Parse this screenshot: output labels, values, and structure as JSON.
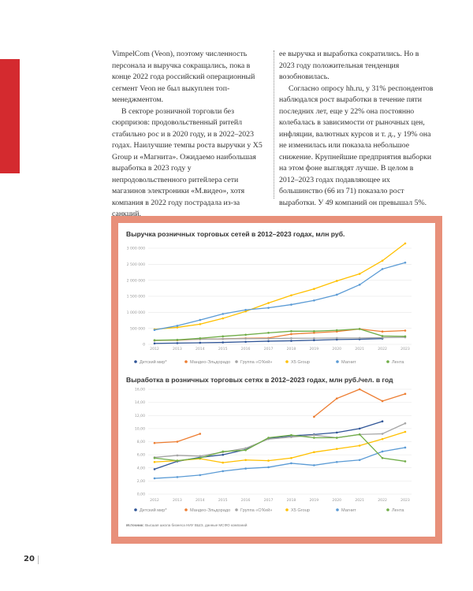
{
  "text": {
    "left": [
      "VimpelCom (Veon), поэтому численность персонала и выручка сокращались, пока в конце 2022 года российский операционный сегмент Veon не был выкуплен топ-менеджментом.",
      "В секторе розничной торговли без сюрпризов: продовольственный ритейл стабильно рос и в 2020 году, и в 2022–2023 годах. Наилучшие темпы роста выручки у X5 Group и «Магнита». Ожидаемо наибольшая выработка в 2023 году у непродовольственного ритейлера сети магазинов электроники «М.видео», хотя компания в 2022 году пострадала из-за санкций,"
    ],
    "right": [
      "ее выручка и выработка сократились. Но в 2023 году положительная тенденция возобновилась.",
      "Согласно опросу hh.ru, у 31% респондентов наблюдался рост выработки в течение пяти последних лет, еще у 22% она постоянно колебалась в зависимости от рыночных цен, инфляции, валютных курсов и т. д., у 19% она не изменилась или показала небольшое снижение. Крупнейшие предприятия выборки на этом фоне выглядят лучше. В целом в 2012–2023 годах подавляющее их большинство (66 из 71) показало рост выработки. У 49 компаний он превышал 5%."
    ]
  },
  "page_number": "20",
  "source_label": "Источник:",
  "source_text": "Высшая школа бизнеса НИУ ВШЭ, данные МСФО компаний",
  "chart_data": [
    {
      "type": "line",
      "title": "Выручка розничных торговых сетей в 2012–2023 годах, млн руб.",
      "categories": [
        "2012",
        "2013",
        "2014",
        "2015",
        "2016",
        "2017",
        "2018",
        "2019",
        "2020",
        "2021",
        "2022",
        "2023"
      ],
      "ylim": [
        0,
        3000000
      ],
      "yticks": [
        0,
        500000,
        1000000,
        1500000,
        2000000,
        2500000,
        3000000
      ],
      "ytick_labels": [
        "0",
        "500 000",
        "1 000 000",
        "1 500 000",
        "2 000 000",
        "2 500 000",
        "3 000 000"
      ],
      "grid": true,
      "legend": "bottom",
      "series": [
        {
          "name": "Детский мир*",
          "color": "#2f5597",
          "values": [
            30000,
            40000,
            50000,
            60000,
            80000,
            100000,
            110000,
            130000,
            150000,
            160000,
            180000,
            null
          ]
        },
        {
          "name": "Мандео-Эльдорадо",
          "color": "#ed7d31",
          "values": [
            120000,
            130000,
            160000,
            170000,
            190000,
            200000,
            320000,
            360000,
            400000,
            480000,
            400000,
            430000
          ]
        },
        {
          "name": "Группа «О'Кей»",
          "color": "#a5a5a5",
          "values": [
            120000,
            140000,
            160000,
            170000,
            180000,
            180000,
            190000,
            190000,
            200000,
            200000,
            210000,
            220000
          ]
        },
        {
          "name": "X5 Group",
          "color": "#ffc000",
          "values": [
            470000,
            530000,
            630000,
            810000,
            1030000,
            1290000,
            1530000,
            1730000,
            1980000,
            2200000,
            2610000,
            3150000
          ]
        },
        {
          "name": "Магнит",
          "color": "#5b9bd5",
          "values": [
            450000,
            580000,
            760000,
            950000,
            1075000,
            1140000,
            1240000,
            1370000,
            1550000,
            1860000,
            2350000,
            2550000
          ]
        },
        {
          "name": "Лента",
          "color": "#70ad47",
          "values": [
            130000,
            140000,
            190000,
            250000,
            300000,
            360000,
            410000,
            410000,
            440000,
            480000,
            260000,
            250000
          ]
        }
      ]
    },
    {
      "type": "line",
      "title": "Выработка в розничных торговых сетях в 2012–2023 годах, млн руб./чел. в год",
      "categories": [
        "2012",
        "2013",
        "2014",
        "2015",
        "2016",
        "2017",
        "2018",
        "2019",
        "2020",
        "2021",
        "2022",
        "2023"
      ],
      "ylim": [
        0,
        16
      ],
      "yticks": [
        0,
        2,
        4,
        6,
        8,
        10,
        12,
        14,
        16
      ],
      "ytick_labels": [
        "0,00",
        "2,00",
        "4,00",
        "6,00",
        "8,00",
        "10,00",
        "12,00",
        "14,00",
        "16,00"
      ],
      "grid": true,
      "legend": "bottom",
      "series": [
        {
          "name": "Детский мир*",
          "color": "#2f5597",
          "values": [
            3.8,
            5.0,
            5.6,
            6.0,
            6.8,
            8.5,
            8.9,
            9.1,
            9.4,
            10.0,
            11.1,
            null
          ]
        },
        {
          "name": "Мандео-Эльдорадо",
          "color": "#ed7d31",
          "values": [
            7.8,
            8.0,
            9.2,
            null,
            null,
            null,
            null,
            11.8,
            14.6,
            16.0,
            14.2,
            15.3
          ]
        },
        {
          "name": "Группа «О'Кей»",
          "color": "#a5a5a5",
          "values": [
            5.6,
            5.9,
            5.8,
            6.4,
            7.0,
            8.4,
            8.7,
            9.0,
            8.6,
            9.1,
            9.2,
            10.8
          ]
        },
        {
          "name": "X5 Group",
          "color": "#ffc000",
          "values": [
            4.9,
            5.1,
            5.4,
            4.8,
            5.2,
            5.1,
            5.5,
            6.4,
            6.9,
            7.4,
            8.4,
            9.5
          ]
        },
        {
          "name": "Магнит",
          "color": "#5b9bd5",
          "values": [
            2.4,
            2.6,
            2.9,
            3.5,
            3.9,
            4.1,
            4.7,
            4.4,
            4.9,
            5.2,
            6.5,
            7.1
          ]
        },
        {
          "name": "Лента",
          "color": "#70ad47",
          "values": [
            5.5,
            5.1,
            5.5,
            6.5,
            6.7,
            8.6,
            9.0,
            8.6,
            8.6,
            9.1,
            5.5,
            5.0
          ]
        }
      ]
    }
  ]
}
